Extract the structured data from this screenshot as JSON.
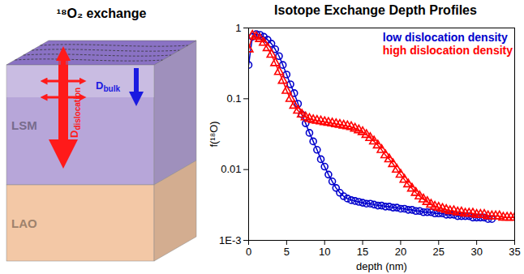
{
  "diagram": {
    "title": "¹⁸O₂ exchange",
    "layers": [
      {
        "label": "LSM",
        "color": "#b7a6d9"
      },
      {
        "label": "LAO",
        "color": "#f3c8a6"
      }
    ],
    "arrows": [
      {
        "symbol": "D",
        "subscript": "dislocation",
        "color": "#ff1a1a"
      },
      {
        "symbol": "D",
        "subscript": "bulk",
        "color": "#1a1ae0"
      }
    ]
  },
  "chart_data": {
    "type": "scatter",
    "title": "Isotope Exchange Depth Profiles",
    "x_label": "depth (nm)",
    "y_label": "f(¹⁸O)",
    "xlim": [
      0,
      35
    ],
    "xticks": [
      0,
      5,
      10,
      15,
      20,
      25,
      30,
      35
    ],
    "ylim": [
      0.001,
      1
    ],
    "yticks": [
      {
        "value": 0.001,
        "label": "1E-3"
      },
      0.01,
      0.1,
      1
    ],
    "log": "y",
    "grid": false,
    "legend": "upper right",
    "series": [
      {
        "name": "low dislocation density",
        "color": "#0000cc",
        "marker": "circle",
        "line_style": "solid",
        "x": [
          0,
          0.5,
          1,
          1.5,
          2,
          2.5,
          3,
          3.5,
          4,
          4.5,
          5,
          5.5,
          6,
          6.5,
          7,
          7.5,
          8,
          8.5,
          9,
          9.5,
          10,
          10.5,
          11,
          11.5,
          12,
          12.5,
          13,
          13.5,
          14,
          14.5,
          15,
          15.5,
          16,
          16.5,
          17,
          17.5,
          18,
          18.5,
          19,
          19.5,
          20,
          20.5,
          21,
          21.5,
          22,
          22.5,
          23,
          23.5,
          24,
          24.5,
          25,
          25.5,
          26,
          26.5,
          27,
          27.5,
          28,
          28.5,
          29,
          29.5,
          30,
          30.5,
          31,
          31.5,
          32
        ],
        "values": [
          0.3,
          0.75,
          0.82,
          0.8,
          0.75,
          0.68,
          0.6,
          0.5,
          0.4,
          0.3,
          0.22,
          0.16,
          0.12,
          0.085,
          0.06,
          0.045,
          0.033,
          0.025,
          0.019,
          0.014,
          0.011,
          0.0085,
          0.0068,
          0.0055,
          0.0047,
          0.0042,
          0.0039,
          0.0037,
          0.0036,
          0.0035,
          0.0034,
          0.0033,
          0.0033,
          0.0032,
          0.0031,
          0.0031,
          0.003,
          0.003,
          0.0029,
          0.0029,
          0.0028,
          0.0028,
          0.0027,
          0.0027,
          0.0026,
          0.0026,
          0.0025,
          0.0025,
          0.0025,
          0.0024,
          0.0024,
          0.0024,
          0.0023,
          0.0023,
          0.0023,
          0.0022,
          0.0022,
          0.0022,
          0.0022,
          0.0021,
          0.0021,
          0.0021,
          0.0021,
          0.002,
          0.002
        ]
      },
      {
        "name": "high dislocation density",
        "color": "#ff0000",
        "marker": "triangle",
        "line_style": "solid",
        "x": [
          0,
          0.5,
          1,
          1.5,
          2,
          2.5,
          3,
          3.5,
          4,
          4.5,
          5,
          5.5,
          6,
          6.5,
          7,
          7.5,
          8,
          8.5,
          9,
          9.5,
          10,
          10.5,
          11,
          11.5,
          12,
          12.5,
          13,
          13.5,
          14,
          14.5,
          15,
          15.5,
          16,
          16.5,
          17,
          17.5,
          18,
          18.5,
          19,
          19.5,
          20,
          20.5,
          21,
          21.5,
          22,
          22.5,
          23,
          23.5,
          24,
          24.5,
          25,
          25.5,
          26,
          26.5,
          27,
          27.5,
          28,
          28.5,
          29,
          29.5,
          30,
          30.5,
          31,
          31.5,
          32,
          32.5,
          33,
          33.5,
          34,
          34.5,
          35
        ],
        "values": [
          0.5,
          0.78,
          0.75,
          0.7,
          0.62,
          0.52,
          0.42,
          0.32,
          0.24,
          0.18,
          0.13,
          0.1,
          0.08,
          0.068,
          0.06,
          0.055,
          0.052,
          0.05,
          0.049,
          0.048,
          0.047,
          0.046,
          0.045,
          0.044,
          0.043,
          0.042,
          0.041,
          0.04,
          0.038,
          0.036,
          0.034,
          0.031,
          0.028,
          0.025,
          0.022,
          0.019,
          0.016,
          0.014,
          0.012,
          0.01,
          0.0085,
          0.0072,
          0.0062,
          0.0054,
          0.0047,
          0.0042,
          0.0038,
          0.0035,
          0.0032,
          0.003,
          0.0029,
          0.0028,
          0.0027,
          0.0026,
          0.0026,
          0.0025,
          0.0025,
          0.0024,
          0.0024,
          0.0024,
          0.0023,
          0.0023,
          0.0023,
          0.0022,
          0.0022,
          0.0022,
          0.0022,
          0.0021,
          0.0021,
          0.0021,
          0.0021
        ]
      }
    ]
  }
}
